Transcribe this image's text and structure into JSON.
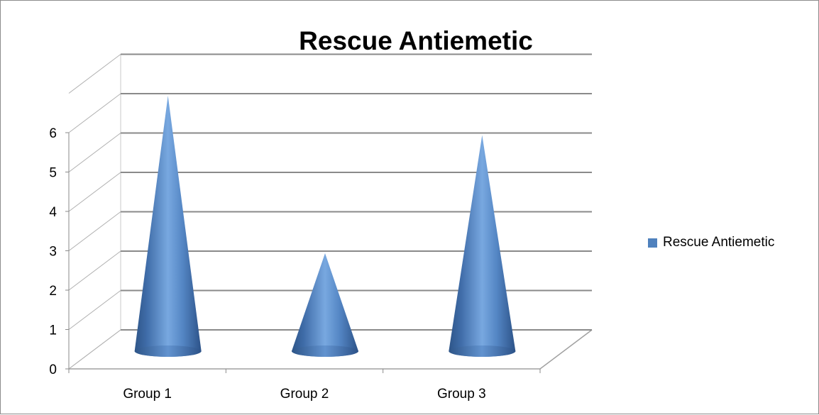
{
  "chart_data": {
    "type": "bar",
    "bar_shape": "3d-cone",
    "title": "Rescue Antiemetic",
    "xlabel": "",
    "ylabel": "",
    "categories": [
      "Group 1",
      "Group 2",
      "Group 3"
    ],
    "series": [
      {
        "name": "Rescue Antiemetic",
        "values": [
          6,
          2,
          5
        ]
      }
    ],
    "ylim": [
      0,
      6
    ],
    "yticks": [
      "0",
      "1",
      "2",
      "3",
      "4",
      "5",
      "6"
    ],
    "grid": true,
    "legend_position": "right",
    "series_color": "#4f81bd"
  }
}
